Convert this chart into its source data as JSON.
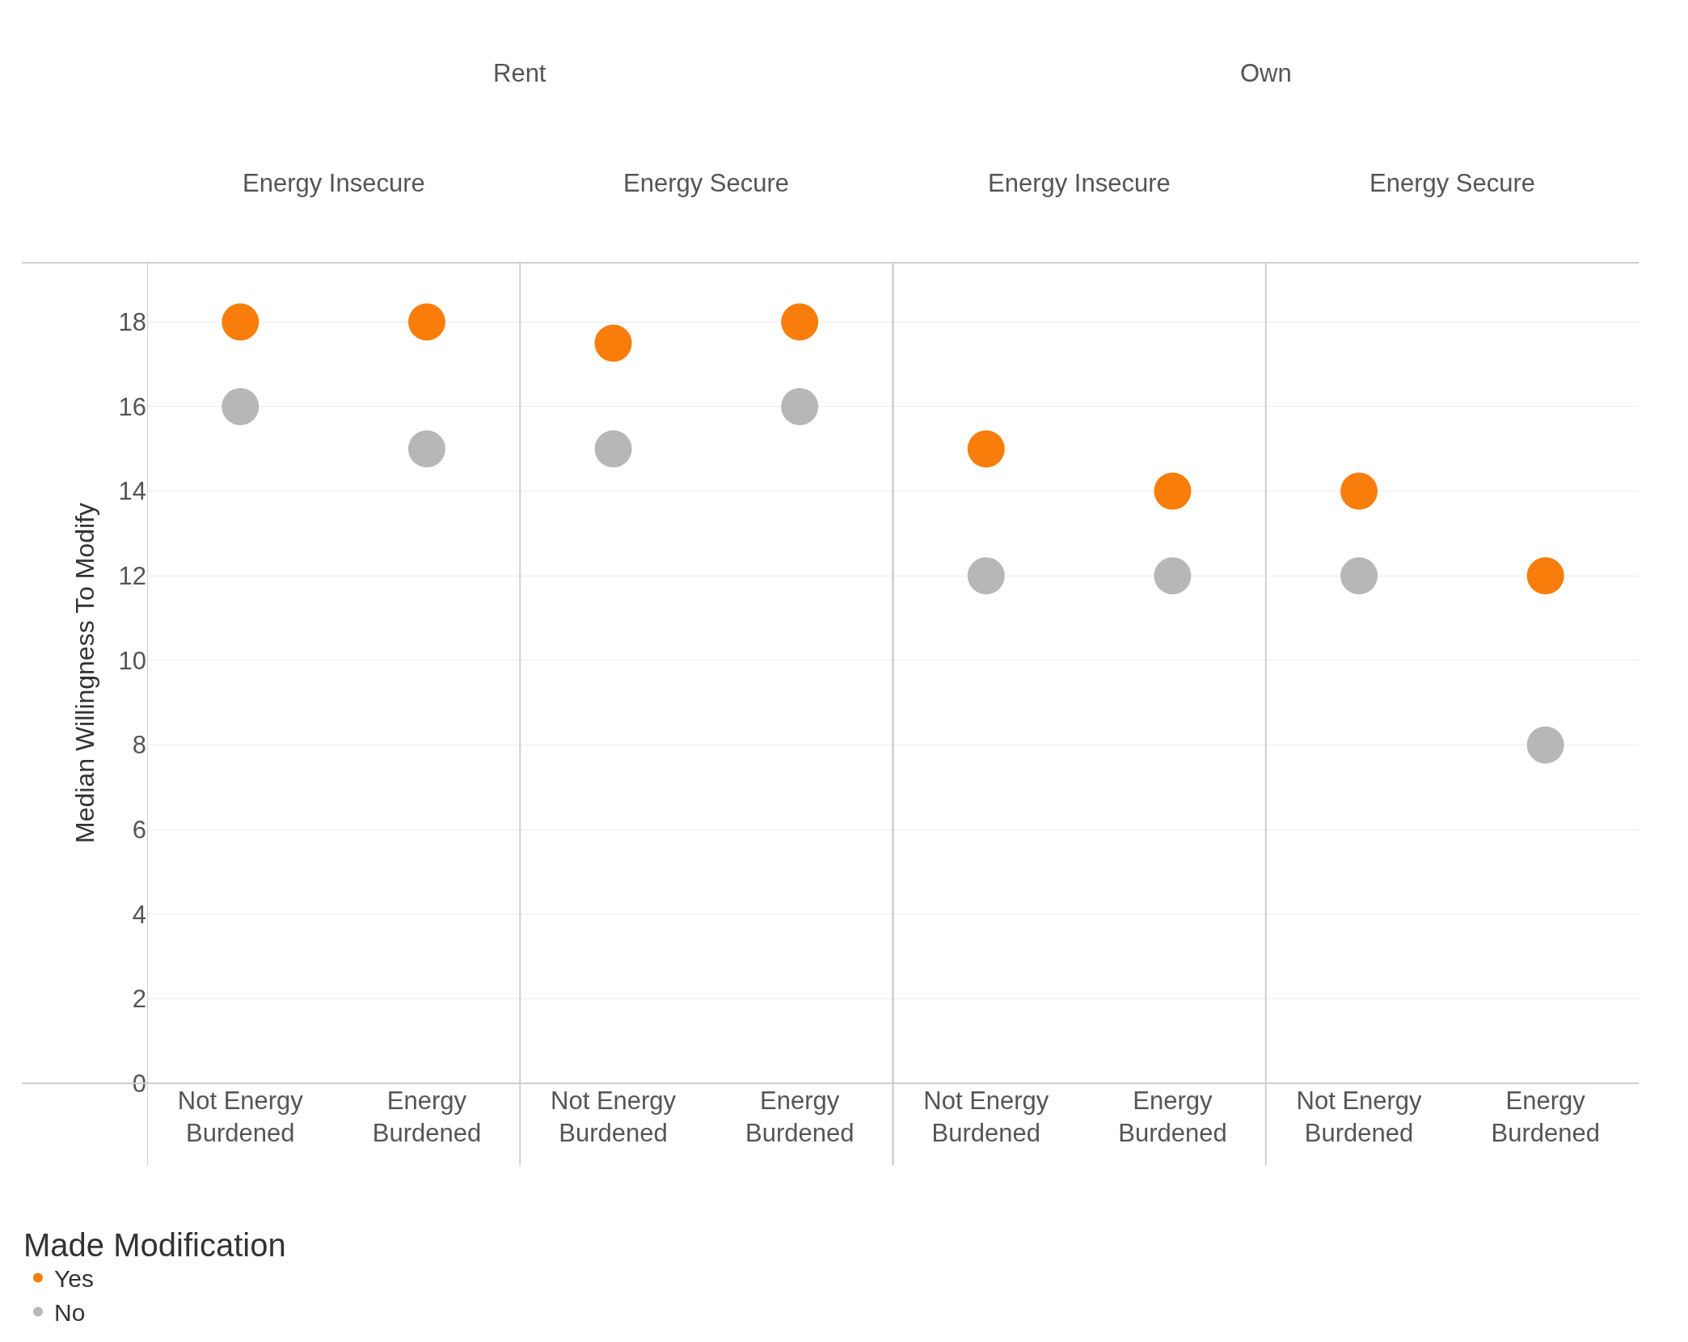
{
  "chart_data": {
    "type": "scatter",
    "categories": [
      "Not Energy Burdened",
      "Energy Burdened",
      "Not Energy Burdened",
      "Energy Burdened",
      "Not Energy Burdened",
      "Energy Burdened",
      "Not Energy Burdened",
      "Energy Burdened"
    ],
    "ylabel": "Median Willingness To Modify",
    "legend_title": "Made Modification",
    "annotations": [
      "Rent",
      "Own",
      "Energy Insecure",
      "Energy Secure",
      "Energy Insecure",
      "Energy Secure"
    ],
    "series": [
      {
        "name": "Yes",
        "color": "#f97d0b",
        "values": [
          18,
          18,
          17.5,
          18,
          15,
          14,
          14,
          12
        ]
      },
      {
        "name": "No",
        "color": "#b5b7b8",
        "values": [
          16,
          15,
          15,
          16,
          12,
          12,
          12,
          8
        ]
      }
    ],
    "ylim": [
      0,
      19.4
    ],
    "yticks": [
      0,
      2,
      4,
      6,
      8,
      10,
      12,
      14,
      16,
      18
    ],
    "grid": "y",
    "legend": "bottom left",
    "marker": "circle"
  }
}
